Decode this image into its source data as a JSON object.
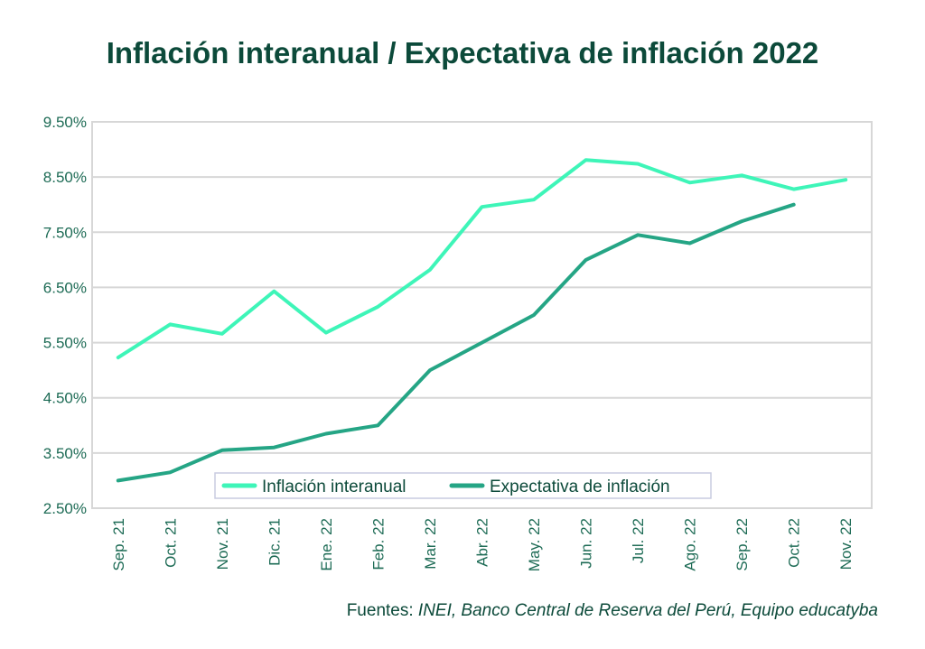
{
  "colors": {
    "title": "#0c4a3a",
    "axis_text": "#1d6b55",
    "grid": "#d7d7d7",
    "series1": "#3ef5b8",
    "series2": "#25a585",
    "legend_border": "#c9cce0"
  },
  "source": {
    "lead": "Fuentes:",
    "names": "INEI, Banco Central de Reserva del Perú, Equipo educatyba"
  },
  "chart_data": {
    "type": "line",
    "title": "Inflación interanual / Expectativa de inflación 2022",
    "xlabel": "",
    "ylabel": "",
    "categories": [
      "Sep. 21",
      "Oct. 21",
      "Nov. 21",
      "Dic. 21",
      "Ene. 22",
      "Feb. 22",
      "Mar. 22",
      "Abr. 22",
      "May. 22",
      "Jun. 22",
      "Jul. 22",
      "Ago. 22",
      "Sep. 22",
      "Oct. 22",
      "Nov. 22"
    ],
    "ylim": [
      2.5,
      9.5
    ],
    "yticks": [
      2.5,
      3.5,
      4.5,
      5.5,
      6.5,
      7.5,
      8.5,
      9.5
    ],
    "ytick_labels": [
      "2.50%",
      "3.50%",
      "4.50%",
      "5.50%",
      "6.50%",
      "7.50%",
      "8.50%",
      "9.50%"
    ],
    "grid": true,
    "legend_position": "bottom-center",
    "series": [
      {
        "name": "Inflación interanual",
        "values": [
          5.23,
          5.83,
          5.66,
          6.43,
          5.68,
          6.15,
          6.82,
          7.96,
          8.09,
          8.81,
          8.74,
          8.4,
          8.53,
          8.28,
          8.45
        ]
      },
      {
        "name": "Expectativa de inflación",
        "values": [
          3.0,
          3.15,
          3.55,
          3.6,
          3.85,
          4.0,
          5.0,
          5.5,
          6.0,
          7.0,
          7.45,
          7.3,
          7.7,
          8.0,
          null
        ]
      }
    ]
  }
}
